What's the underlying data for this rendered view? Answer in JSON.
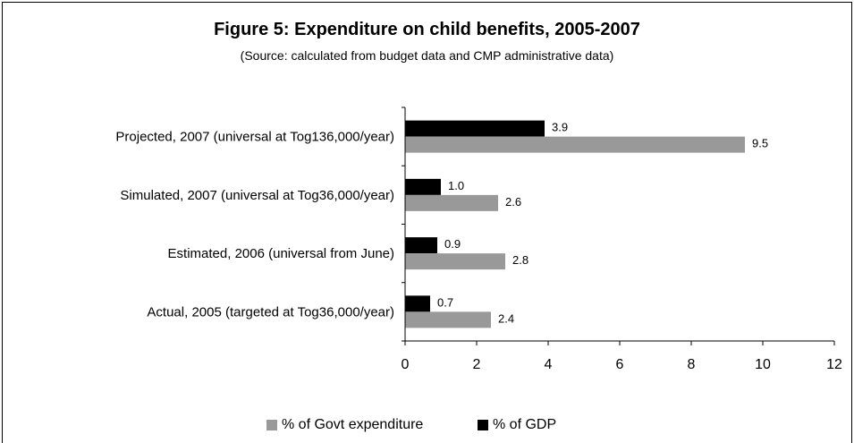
{
  "chart_data": {
    "type": "bar",
    "orientation": "horizontal",
    "title": "Figure 5: Expenditure on child benefits, 2005-2007",
    "subtitle": "(Source: calculated from budget data and CMP administrative data)",
    "categories": [
      "Projected, 2007 (universal at Tog136,000/year)",
      "Simulated, 2007 (universal at Tog36,000/year)",
      "Estimated, 2006 (universal from June)",
      "Actual, 2005 (targeted at Tog36,000/year)"
    ],
    "series": [
      {
        "name": "% of GDP",
        "color": "#000000",
        "values": [
          3.9,
          1.0,
          0.9,
          0.7
        ],
        "labels": [
          "3.9",
          "1.0",
          "0.9",
          "0.7"
        ]
      },
      {
        "name": "% of Govt expenditure",
        "color": "#999999",
        "values": [
          9.5,
          2.6,
          2.8,
          2.4
        ],
        "labels": [
          "9.5",
          "2.6",
          "2.8",
          "2.4"
        ]
      }
    ],
    "xlim": [
      0,
      12
    ],
    "xticks": [
      "0",
      "2",
      "4",
      "6",
      "8",
      "10",
      "12"
    ],
    "grid": false,
    "legend_position": "bottom",
    "legend_order": [
      "% of Govt expenditure",
      "% of GDP"
    ]
  }
}
